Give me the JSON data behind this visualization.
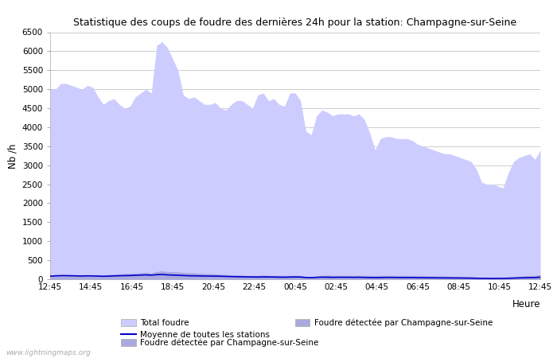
{
  "title": "Statistique des coups de foudre des dernières 24h pour la station: Champagne-sur-Seine",
  "xlabel": "Heure",
  "ylabel": "Nb /h",
  "xlim_labels": [
    "12:45",
    "14:45",
    "16:45",
    "18:45",
    "20:45",
    "22:45",
    "00:45",
    "02:45",
    "04:45",
    "06:45",
    "08:45",
    "10:45",
    "12:45"
  ],
  "ylim": [
    0,
    6500
  ],
  "yticks": [
    0,
    500,
    1000,
    1500,
    2000,
    2500,
    3000,
    3500,
    4000,
    4500,
    5000,
    5500,
    6000,
    6500
  ],
  "bg_color": "#ffffff",
  "grid_color": "#cccccc",
  "fill_color_light": "#ccccff",
  "fill_color_dark": "#aaaadd",
  "line_color": "#0000cc",
  "watermark": "www.lightningmaps.org",
  "legend_total": "Total foudre",
  "legend_moyenne": "Moyenne de toutes les stations",
  "legend_local": "Foudre détectée par Champagne-sur-Seine",
  "total_foudre": [
    5000,
    5000,
    5150,
    5150,
    5100,
    5050,
    5000,
    5100,
    5050,
    4800,
    4600,
    4700,
    4750,
    4600,
    4500,
    4550,
    4800,
    4900,
    5000,
    4900,
    6150,
    6250,
    6100,
    5800,
    5500,
    4850,
    4750,
    4800,
    4700,
    4600,
    4600,
    4650,
    4500,
    4450,
    4600,
    4700,
    4700,
    4600,
    4500,
    4850,
    4900,
    4700,
    4750,
    4600,
    4550,
    4900,
    4900,
    4700,
    3900,
    3800,
    4300,
    4450,
    4400,
    4300,
    4350,
    4350,
    4350,
    4300,
    4350,
    4200,
    3850,
    3400,
    3700,
    3750,
    3750,
    3700,
    3700,
    3700,
    3650,
    3550,
    3500,
    3450,
    3400,
    3350,
    3300,
    3300,
    3250,
    3200,
    3150,
    3100,
    2900,
    2550,
    2500,
    2500,
    2450,
    2400,
    2800,
    3100,
    3200,
    3250,
    3300,
    3150,
    3400
  ],
  "local_foudre": [
    80,
    90,
    100,
    100,
    100,
    110,
    100,
    110,
    100,
    100,
    100,
    120,
    130,
    140,
    150,
    150,
    160,
    170,
    180,
    160,
    200,
    220,
    200,
    200,
    190,
    180,
    170,
    170,
    160,
    150,
    150,
    140,
    130,
    120,
    110,
    110,
    110,
    100,
    100,
    100,
    110,
    100,
    100,
    100,
    100,
    100,
    100,
    100,
    70,
    70,
    80,
    100,
    110,
    100,
    100,
    100,
    100,
    100,
    100,
    100,
    100,
    100,
    100,
    100,
    100,
    100,
    100,
    100,
    100,
    100,
    100,
    90,
    90,
    90,
    90,
    85,
    80,
    80,
    75,
    70,
    60,
    55,
    55,
    50,
    55,
    55,
    60,
    70,
    80,
    90,
    95,
    100,
    120
  ],
  "moyenne_foudre": [
    80,
    90,
    95,
    95,
    92,
    88,
    85,
    90,
    87,
    83,
    78,
    82,
    88,
    92,
    95,
    98,
    105,
    110,
    115,
    108,
    120,
    125,
    115,
    110,
    105,
    98,
    92,
    90,
    88,
    85,
    83,
    82,
    78,
    75,
    70,
    68,
    65,
    62,
    60,
    58,
    62,
    60,
    58,
    55,
    53,
    58,
    60,
    58,
    45,
    42,
    50,
    55,
    53,
    50,
    52,
    52,
    52,
    50,
    52,
    48,
    45,
    42,
    45,
    48,
    48,
    46,
    45,
    45,
    44,
    42,
    40,
    38,
    38,
    36,
    35,
    34,
    33,
    32,
    30,
    28,
    25,
    22,
    22,
    20,
    22,
    22,
    25,
    30,
    35,
    40,
    42,
    45,
    55
  ]
}
